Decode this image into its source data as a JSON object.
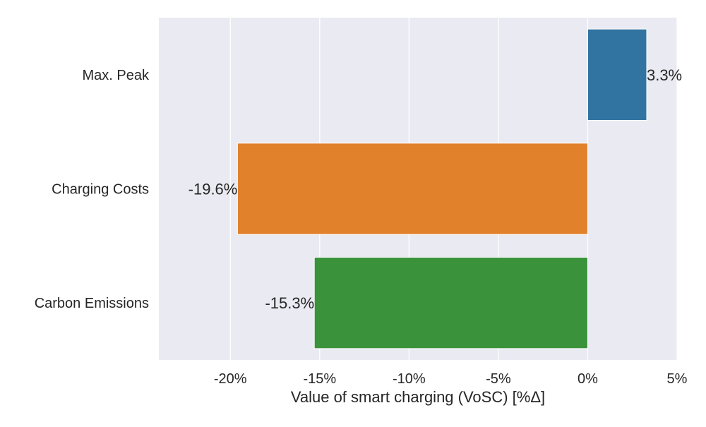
{
  "chart_data": {
    "type": "bar",
    "orientation": "horizontal",
    "categories": [
      "Max. Peak",
      "Charging Costs",
      "Carbon Emissions"
    ],
    "values": [
      3.3,
      -19.6,
      -15.3
    ],
    "data_labels": [
      "3.3%",
      "-19.6%",
      "-15.3%"
    ],
    "colors": [
      "#3274a1",
      "#e1812c",
      "#3a923a"
    ],
    "title": "",
    "xlabel": "Value of smart charging (VoSC) [%Δ]",
    "ylabel": "",
    "xlim": [
      -24,
      5
    ],
    "xticks": [
      -20,
      -15,
      -10,
      -5,
      0,
      5
    ],
    "xtick_labels": [
      "-20%",
      "-15%",
      "-10%",
      "-5%",
      "0%",
      "5%"
    ],
    "grid": true,
    "background": "#eaeaf2",
    "legend": "none"
  }
}
